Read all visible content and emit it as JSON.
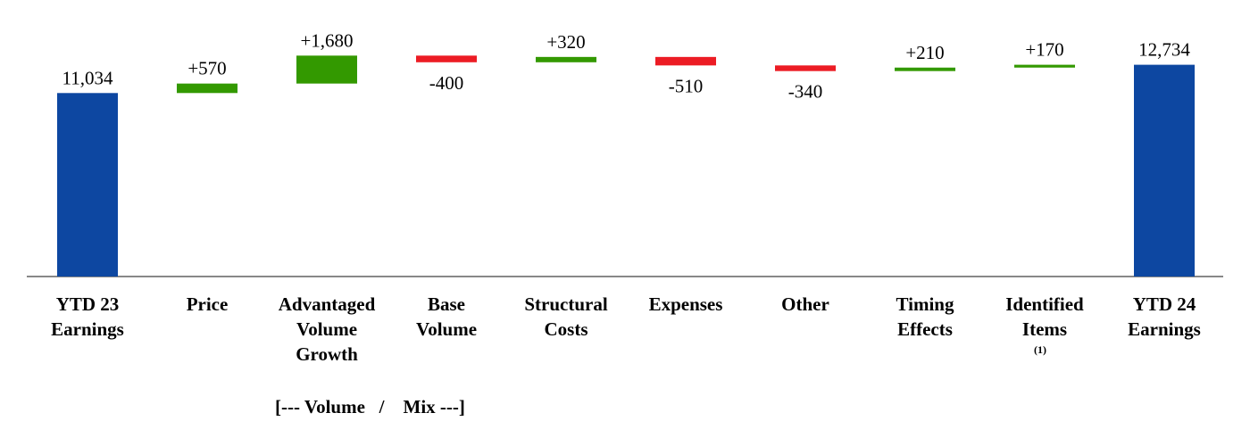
{
  "chart_data": {
    "type": "waterfall",
    "categories": [
      "YTD 23\nEarnings",
      "Price",
      "Advantaged\nVolume\nGrowth",
      "Base\nVolume",
      "Structural\nCosts",
      "Expenses",
      "Other",
      "Timing\nEffects",
      "Identified\nItems",
      "YTD 24\nEarnings"
    ],
    "measures": [
      "total",
      "relative",
      "relative",
      "relative",
      "relative",
      "relative",
      "relative",
      "relative",
      "relative",
      "total"
    ],
    "values": [
      11034,
      570,
      1680,
      -400,
      320,
      -510,
      -340,
      210,
      170,
      12734
    ],
    "value_labels": [
      "11,034",
      "+570",
      "+1,680",
      "-400",
      "+320",
      "-510",
      "-340",
      "+210",
      "+170",
      "12,734"
    ],
    "colors": {
      "total": "#0d47a1",
      "increase": "#339900",
      "decrease": "#ec1c24"
    },
    "ylim": [
      0,
      14000
    ],
    "annotations": [
      {
        "text": "(1)",
        "category": 8
      },
      {
        "text": "[--- Volume   /    Mix ---]",
        "category": 2
      }
    ]
  }
}
